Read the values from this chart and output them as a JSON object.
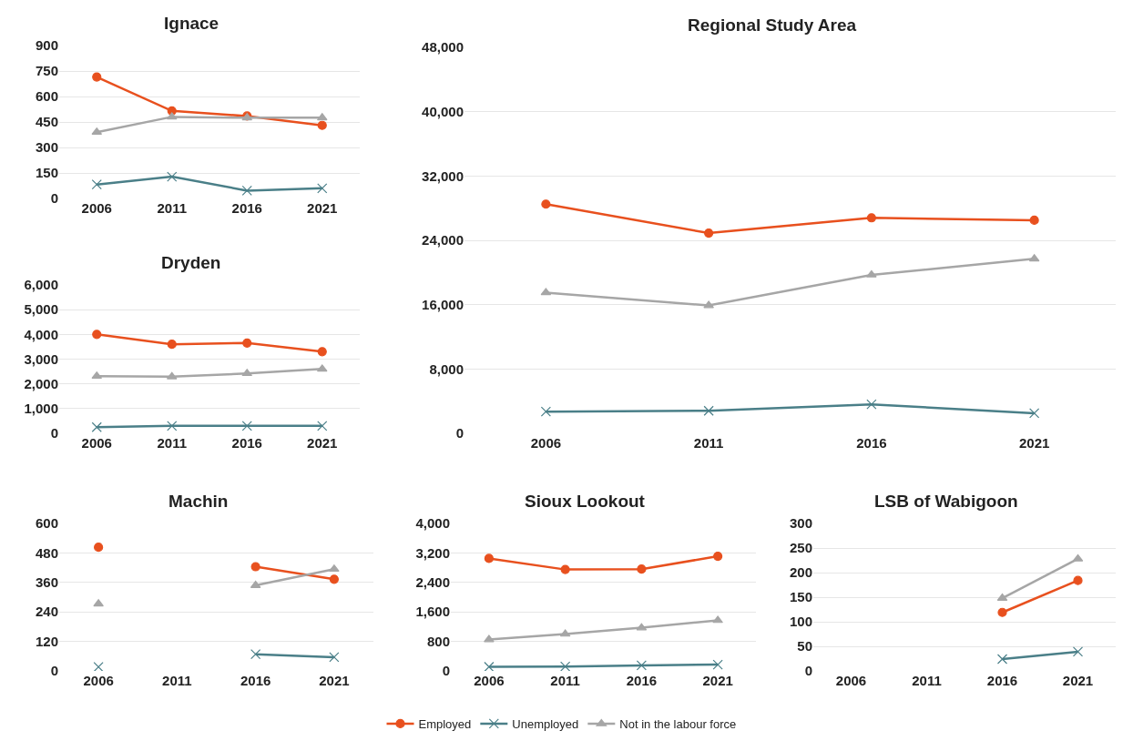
{
  "chart_data": [
    {
      "type": "line",
      "title": "Ignace",
      "categories": [
        "2006",
        "2011",
        "2016",
        "2021"
      ],
      "ylim": [
        0,
        900
      ],
      "yticks": [
        0,
        150,
        300,
        450,
        600,
        750,
        900
      ],
      "grid": "y",
      "legend": "bottom",
      "line_style": "solid",
      "series": [
        {
          "name": "Employed",
          "color": "#e8501e",
          "marker": "circle",
          "values": [
            715,
            515,
            485,
            430
          ]
        },
        {
          "name": "Unemployed",
          "color": "#4a7f88",
          "marker": "cross",
          "values": [
            82,
            128,
            46,
            60
          ]
        },
        {
          "name": "Not in the labour force",
          "color": "#a6a6a6",
          "marker": "triangle",
          "values": [
            390,
            480,
            475,
            475
          ]
        }
      ]
    },
    {
      "type": "line",
      "title": "Regional Study Area",
      "categories": [
        "2006",
        "2011",
        "2016",
        "2021"
      ],
      "ylim": [
        0,
        48000
      ],
      "yticks": [
        0,
        {
          "value": 8000,
          "label": "8,000"
        },
        {
          "value": 16000,
          "label": "16,000"
        },
        {
          "value": 24000,
          "label": "24,000"
        },
        {
          "value": 32000,
          "label": "32,000"
        },
        {
          "value": 40000,
          "label": "40,000"
        },
        {
          "value": 48000,
          "label": "48,000"
        }
      ],
      "grid": "y",
      "line_style": "solid",
      "series": [
        {
          "color": "#e8501e",
          "marker": "circle",
          "values": [
            28500,
            24900,
            26800,
            26500
          ]
        },
        {
          "color": "#4a7f88",
          "marker": "cross",
          "values": [
            2700,
            2800,
            3600,
            2500
          ]
        },
        {
          "color": "#a6a6a6",
          "marker": "triangle",
          "values": [
            17500,
            15900,
            19700,
            21700
          ]
        }
      ]
    },
    {
      "type": "line",
      "title": "Dryden",
      "categories": [
        "2006",
        "2011",
        "2016",
        "2021"
      ],
      "ylim": [
        0,
        6000
      ],
      "yticks": [
        0,
        {
          "value": 1000,
          "label": "1,000"
        },
        {
          "value": 2000,
          "label": "2,000"
        },
        {
          "value": 3000,
          "label": "3,000"
        },
        {
          "value": 4000,
          "label": "4,000"
        },
        {
          "value": 5000,
          "label": "5,000"
        },
        {
          "value": 6000,
          "label": "6,000"
        }
      ],
      "grid": "y",
      "line_style": "solid",
      "series": [
        {
          "color": "#e8501e",
          "marker": "circle",
          "values": [
            4000,
            3600,
            3650,
            3300
          ]
        },
        {
          "color": "#4a7f88",
          "marker": "cross",
          "values": [
            250,
            300,
            300,
            300
          ]
        },
        {
          "color": "#a6a6a6",
          "marker": "triangle",
          "values": [
            2310,
            2290,
            2420,
            2600
          ]
        }
      ]
    },
    {
      "type": "line",
      "title": "Machin",
      "categories": [
        "2006",
        "2011",
        "2016",
        "2021"
      ],
      "ylim": [
        0,
        600
      ],
      "yticks": [
        0,
        120,
        240,
        360,
        480,
        600
      ],
      "grid": "y",
      "line_style": "solid",
      "series": [
        {
          "color": "#e8501e",
          "marker": "circle",
          "values": [
            503,
            null,
            424,
            373
          ]
        },
        {
          "color": "#4a7f88",
          "marker": "cross",
          "values": [
            16,
            null,
            68,
            56
          ]
        },
        {
          "color": "#a6a6a6",
          "marker": "triangle",
          "values": [
            273,
            null,
            348,
            414
          ]
        }
      ]
    },
    {
      "type": "line",
      "title": "Sioux Lookout",
      "categories": [
        "2006",
        "2011",
        "2016",
        "2021"
      ],
      "ylim": [
        0,
        4000
      ],
      "yticks": [
        0,
        800,
        {
          "value": 1600,
          "label": "1,600"
        },
        {
          "value": 2400,
          "label": "2,400"
        },
        {
          "value": 3200,
          "label": "3,200"
        },
        {
          "value": 4000,
          "label": "4,000"
        }
      ],
      "grid": "y",
      "line_style": "solid",
      "series": [
        {
          "color": "#e8501e",
          "marker": "circle",
          "values": [
            3050,
            2750,
            2760,
            3110
          ]
        },
        {
          "color": "#4a7f88",
          "marker": "cross",
          "values": [
            110,
            120,
            150,
            170
          ]
        },
        {
          "color": "#a6a6a6",
          "marker": "triangle",
          "values": [
            850,
            1000,
            1170,
            1370
          ]
        }
      ]
    },
    {
      "type": "line",
      "title": "LSB of Wabigoon",
      "categories": [
        "2006",
        "2011",
        "2016",
        "2021"
      ],
      "ylim": [
        0,
        300
      ],
      "yticks": [
        0,
        50,
        100,
        150,
        200,
        250,
        300
      ],
      "grid": "y",
      "line_style": "solid",
      "series": [
        {
          "color": "#e8501e",
          "marker": "circle",
          "values": [
            null,
            null,
            119,
            184
          ]
        },
        {
          "color": "#4a7f88",
          "marker": "cross",
          "values": [
            null,
            null,
            24,
            39
          ]
        },
        {
          "color": "#a6a6a6",
          "marker": "triangle",
          "values": [
            null,
            null,
            148,
            228
          ]
        }
      ]
    }
  ]
}
